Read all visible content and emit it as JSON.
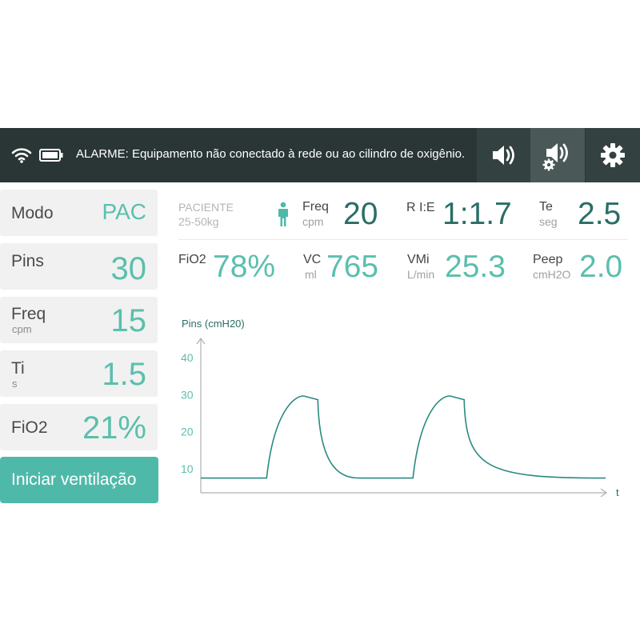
{
  "topbar": {
    "alarm_text": "ALARME: Equipamento não conectado à rede ou ao cilindro de oxigênio.",
    "wifi_icon": "wifi-icon",
    "battery_icon": "battery-icon",
    "buttons": [
      "speaker-icon",
      "speaker-settings-icon",
      "gear-icon"
    ]
  },
  "left_panel": {
    "mode": {
      "label": "Modo",
      "value": "PAC"
    },
    "pins": {
      "label": "Pins",
      "value": "30"
    },
    "freq": {
      "label": "Freq",
      "unit": "cpm",
      "value": "15"
    },
    "ti": {
      "label": "Ti",
      "unit": "s",
      "value": "1.5"
    },
    "fio2": {
      "label": "FiO2",
      "value": "21%"
    },
    "start_button": "Iniciar ventilação"
  },
  "patient": {
    "title": "PACIENTE",
    "range": "25-50kg",
    "icon": "person-icon"
  },
  "metrics": {
    "freq": {
      "label": "Freq",
      "unit": "cpm",
      "value": "20"
    },
    "rie": {
      "label": "R I:E",
      "value": "1:1.7"
    },
    "te": {
      "label": "Te",
      "unit": "seg",
      "value": "2.5"
    },
    "fio2": {
      "label": "FiO2",
      "value": "78%"
    },
    "vc": {
      "label": "VC",
      "unit": "ml",
      "value": "765"
    },
    "vmi": {
      "label": "VMi",
      "unit": "L/min",
      "value": "25.3"
    },
    "peep": {
      "label": "Peep",
      "unit": "cmH2O",
      "value": "2.0"
    }
  },
  "colors": {
    "topbar": "#2a3636",
    "accent": "#4fb9a9",
    "value_teal": "#5bbfad",
    "value_dark": "#2a6e66"
  },
  "chart_data": {
    "type": "line",
    "ylabel": "Pins (cmH20)",
    "xlabel": "t",
    "yticks": [
      "40",
      "30",
      "20",
      "10"
    ],
    "ylim": [
      0,
      45
    ],
    "x": [
      0,
      0.5,
      1.0,
      1.6,
      1.75,
      2.0,
      2.5,
      3.0,
      3.5,
      4.6,
      5.1,
      5.6,
      6.2,
      6.35,
      6.6,
      7.1,
      7.6,
      8.3
    ],
    "values": [
      7.5,
      7.5,
      7.5,
      7.5,
      29.0,
      29.0,
      29.5,
      29.5,
      29.0,
      7.5,
      7.5,
      7.5,
      7.5,
      29.0,
      29.5,
      29.5,
      29.0,
      7.5
    ]
  }
}
